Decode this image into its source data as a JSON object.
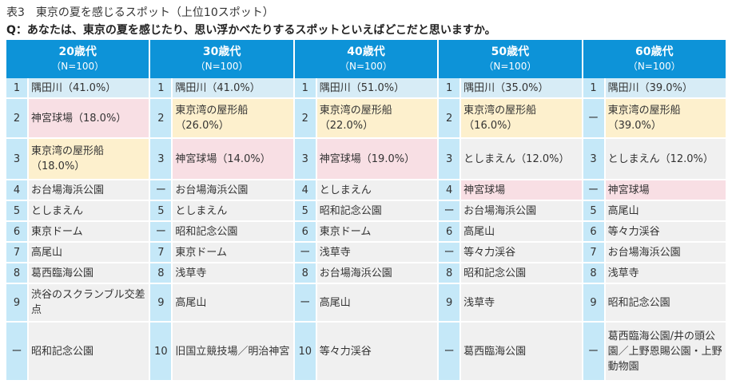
{
  "title": "表3　東京の夏を感じるスポット（上位10スポット）",
  "question": "Q：あなたは、東京の夏を感じたり、思い浮かべたりするスポットといえばどこだと思いますか。",
  "colors": {
    "header": "#0d93d8",
    "rank": "#c5e8f8",
    "first": "#d7ecf6",
    "pink": "#f8dfe4",
    "yellow": "#fdf0cd",
    "gray": "#f0f0f0"
  },
  "columns": [
    {
      "age": "20歳代",
      "n": "（N=100）"
    },
    {
      "age": "30歳代",
      "n": "（N=100）"
    },
    {
      "age": "40歳代",
      "n": "（N=100）"
    },
    {
      "age": "50歳代",
      "n": "（N=100）"
    },
    {
      "age": "60歳代",
      "n": "（N=100）"
    }
  ],
  "rows": [
    [
      {
        "rank": "1",
        "text": "隅田川（41.0%）",
        "color": "blue"
      },
      {
        "rank": "1",
        "text": "隅田川（41.0%）",
        "color": "blue"
      },
      {
        "rank": "1",
        "text": "隅田川（51.0%）",
        "color": "blue"
      },
      {
        "rank": "1",
        "text": "隅田川（35.0%）",
        "color": "blue"
      },
      {
        "rank": "1",
        "text": "隅田川（39.0%）",
        "color": "blue"
      }
    ],
    [
      {
        "rank": "2",
        "text": "神宮球場（18.0%）",
        "color": "pink"
      },
      {
        "rank": "2",
        "text": "東京湾の屋形船（26.0%）",
        "color": "yellow"
      },
      {
        "rank": "2",
        "text": "東京湾の屋形船（22.0%）",
        "color": "yellow"
      },
      {
        "rank": "2",
        "text": "東京湾の屋形船（16.0%）",
        "color": "yellow"
      },
      {
        "rank": "ー",
        "text": "東京湾の屋形船（39.0%）",
        "color": "yellow"
      }
    ],
    [
      {
        "rank": "3",
        "text": "東京湾の屋形船（18.0%）",
        "color": "yellow"
      },
      {
        "rank": "3",
        "text": "神宮球場（14.0%）",
        "color": "pink"
      },
      {
        "rank": "3",
        "text": "神宮球場（19.0%）",
        "color": "pink"
      },
      {
        "rank": "3",
        "text": "としまえん（12.0%）",
        "color": "gray"
      },
      {
        "rank": "3",
        "text": "としまえん（12.0%）",
        "color": "gray"
      }
    ],
    [
      {
        "rank": "4",
        "text": "お台場海浜公園",
        "color": "gray"
      },
      {
        "rank": "ー",
        "text": "お台場海浜公園",
        "color": "gray"
      },
      {
        "rank": "4",
        "text": "としまえん",
        "color": "gray"
      },
      {
        "rank": "4",
        "text": "神宮球場",
        "color": "pink"
      },
      {
        "rank": "ー",
        "text": "神宮球場",
        "color": "pink"
      }
    ],
    [
      {
        "rank": "5",
        "text": "としまえん",
        "color": "gray"
      },
      {
        "rank": "5",
        "text": "としまえん",
        "color": "gray"
      },
      {
        "rank": "5",
        "text": "昭和記念公園",
        "color": "gray"
      },
      {
        "rank": "ー",
        "text": "お台場海浜公園",
        "color": "gray"
      },
      {
        "rank": "5",
        "text": "高尾山",
        "color": "gray"
      }
    ],
    [
      {
        "rank": "6",
        "text": "東京ドーム",
        "color": "gray"
      },
      {
        "rank": "ー",
        "text": "昭和記念公園",
        "color": "gray"
      },
      {
        "rank": "6",
        "text": "東京ドーム",
        "color": "gray"
      },
      {
        "rank": "6",
        "text": "高尾山",
        "color": "gray"
      },
      {
        "rank": "6",
        "text": "等々力渓谷",
        "color": "gray"
      }
    ],
    [
      {
        "rank": "7",
        "text": "高尾山",
        "color": "gray"
      },
      {
        "rank": "7",
        "text": "東京ドーム",
        "color": "gray"
      },
      {
        "rank": "ー",
        "text": "浅草寺",
        "color": "gray"
      },
      {
        "rank": "ー",
        "text": "等々力渓谷",
        "color": "gray"
      },
      {
        "rank": "7",
        "text": "お台場海浜公園",
        "color": "gray"
      }
    ],
    [
      {
        "rank": "8",
        "text": "葛西臨海公園",
        "color": "gray"
      },
      {
        "rank": "8",
        "text": "浅草寺",
        "color": "gray"
      },
      {
        "rank": "8",
        "text": "お台場海浜公園",
        "color": "gray"
      },
      {
        "rank": "8",
        "text": "昭和記念公園",
        "color": "gray"
      },
      {
        "rank": "8",
        "text": "浅草寺",
        "color": "gray"
      }
    ],
    [
      {
        "rank": "9",
        "text": "渋谷のスクランブル交差点",
        "color": "gray"
      },
      {
        "rank": "9",
        "text": "高尾山",
        "color": "gray"
      },
      {
        "rank": "ー",
        "text": "高尾山",
        "color": "gray"
      },
      {
        "rank": "9",
        "text": "浅草寺",
        "color": "gray"
      },
      {
        "rank": "9",
        "text": "昭和記念公園",
        "color": "gray"
      }
    ],
    [
      {
        "rank": "ー",
        "text": "昭和記念公園",
        "color": "gray"
      },
      {
        "rank": "10",
        "text": "旧国立競技場／明治神宮",
        "color": "gray"
      },
      {
        "rank": "10",
        "text": "等々力渓谷",
        "color": "gray"
      },
      {
        "rank": "ー",
        "text": "葛西臨海公園",
        "color": "gray"
      },
      {
        "rank": "ー",
        "text": "葛西臨海公園/井の頭公園／上野恩賜公園・上野動物園",
        "color": "gray"
      }
    ]
  ]
}
